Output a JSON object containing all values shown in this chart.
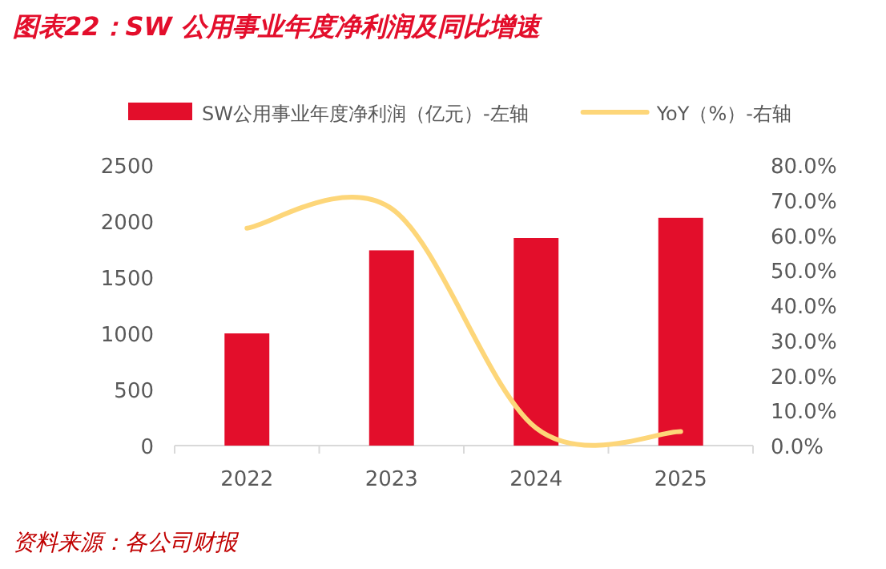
{
  "chart_data": {
    "type": "bar",
    "title": "图表22：SW 公用事业年度净利润及同比增速",
    "categories": [
      "2022",
      "2023",
      "2024",
      "2025"
    ],
    "series": [
      {
        "name": "SW公用事业年度净利润（亿元）-左轴",
        "color": "#e30e2b",
        "values": [
          1000,
          1740,
          1850,
          2030
        ]
      },
      {
        "name": "YoY（%）-右轴",
        "type": "line",
        "axis": "y2",
        "color": "#fdd679",
        "values": [
          62,
          67.6,
          5,
          4
        ]
      }
    ],
    "ylim": [
      0,
      2500
    ],
    "yticks": [
      0,
      500,
      1000,
      1500,
      2000,
      2500
    ],
    "y2lim": [
      0,
      80
    ],
    "y2ticks": [
      {
        "value": 0,
        "label": "0.0%"
      },
      {
        "value": 10,
        "label": "10.0%"
      },
      {
        "value": 20,
        "label": "20.0%"
      },
      {
        "value": 30,
        "label": "30.0%"
      },
      {
        "value": 40,
        "label": "40.0%"
      },
      {
        "value": 50,
        "label": "50.0%"
      },
      {
        "value": 60,
        "label": "60.0%"
      },
      {
        "value": 70,
        "label": "70.0%"
      },
      {
        "value": 80,
        "label": "80.0%"
      }
    ],
    "legend": "top",
    "grid": false,
    "annotations": [
      "资料来源：各公司财报"
    ]
  }
}
